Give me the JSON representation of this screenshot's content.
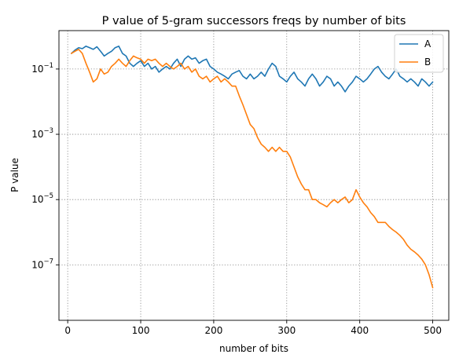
{
  "chart_data": {
    "type": "line",
    "title": "P value of 5-gram successors freqs by number of bits",
    "xlabel": "number of bits",
    "ylabel": "P value",
    "xlim": [
      -12,
      522
    ],
    "ylim": [
      2e-09,
      1.5
    ],
    "yscale": "log",
    "grid": true,
    "legend_position": "top-right",
    "x_ticks": [
      {
        "value": 0,
        "label": "0"
      },
      {
        "value": 100,
        "label": "100"
      },
      {
        "value": 200,
        "label": "200"
      },
      {
        "value": 300,
        "label": "300"
      },
      {
        "value": 400,
        "label": "400"
      },
      {
        "value": 500,
        "label": "500"
      }
    ],
    "y_ticks": [
      {
        "value": 1e-07,
        "base": "10",
        "exp": "−7"
      },
      {
        "value": 1e-05,
        "base": "10",
        "exp": "−5"
      },
      {
        "value": 0.001,
        "base": "10",
        "exp": "−3"
      },
      {
        "value": 0.1,
        "base": "10",
        "exp": "−1"
      }
    ],
    "series": [
      {
        "name": "A",
        "color": "#1f77b4",
        "x": [
          5,
          10,
          15,
          20,
          25,
          30,
          35,
          40,
          45,
          50,
          55,
          60,
          65,
          70,
          75,
          80,
          85,
          90,
          95,
          100,
          105,
          110,
          115,
          120,
          125,
          130,
          135,
          140,
          145,
          150,
          155,
          160,
          165,
          170,
          175,
          180,
          185,
          190,
          195,
          200,
          205,
          210,
          215,
          220,
          225,
          230,
          235,
          240,
          245,
          250,
          255,
          260,
          265,
          270,
          275,
          280,
          285,
          290,
          295,
          300,
          305,
          310,
          315,
          320,
          325,
          330,
          335,
          340,
          345,
          350,
          355,
          360,
          365,
          370,
          375,
          380,
          385,
          390,
          395,
          400,
          405,
          410,
          415,
          420,
          425,
          430,
          435,
          440,
          445,
          450,
          455,
          460,
          465,
          470,
          475,
          480,
          485,
          490,
          495,
          500
        ],
        "y": [
          0.3,
          0.38,
          0.45,
          0.42,
          0.5,
          0.45,
          0.4,
          0.48,
          0.35,
          0.25,
          0.3,
          0.35,
          0.45,
          0.5,
          0.3,
          0.25,
          0.15,
          0.12,
          0.15,
          0.18,
          0.12,
          0.15,
          0.1,
          0.12,
          0.08,
          0.1,
          0.12,
          0.1,
          0.15,
          0.2,
          0.12,
          0.2,
          0.25,
          0.2,
          0.22,
          0.15,
          0.18,
          0.2,
          0.12,
          0.1,
          0.08,
          0.07,
          0.06,
          0.05,
          0.07,
          0.08,
          0.09,
          0.06,
          0.05,
          0.07,
          0.05,
          0.06,
          0.08,
          0.06,
          0.1,
          0.15,
          0.12,
          0.06,
          0.05,
          0.04,
          0.06,
          0.08,
          0.05,
          0.04,
          0.03,
          0.05,
          0.07,
          0.05,
          0.03,
          0.04,
          0.06,
          0.05,
          0.03,
          0.04,
          0.03,
          0.02,
          0.03,
          0.04,
          0.06,
          0.05,
          0.04,
          0.05,
          0.07,
          0.1,
          0.12,
          0.08,
          0.06,
          0.05,
          0.07,
          0.1,
          0.06,
          0.05,
          0.04,
          0.05,
          0.04,
          0.03,
          0.05,
          0.04,
          0.03,
          0.04
        ]
      },
      {
        "name": "B",
        "color": "#ff7f0e",
        "x": [
          5,
          10,
          15,
          20,
          25,
          30,
          35,
          40,
          45,
          50,
          55,
          60,
          65,
          70,
          75,
          80,
          85,
          90,
          95,
          100,
          105,
          110,
          115,
          120,
          125,
          130,
          135,
          140,
          145,
          150,
          155,
          160,
          165,
          170,
          175,
          180,
          185,
          190,
          195,
          200,
          205,
          210,
          215,
          220,
          225,
          230,
          235,
          240,
          245,
          250,
          255,
          260,
          265,
          270,
          275,
          280,
          285,
          290,
          295,
          300,
          305,
          310,
          315,
          320,
          325,
          330,
          335,
          340,
          345,
          350,
          355,
          360,
          365,
          370,
          375,
          380,
          385,
          390,
          395,
          400,
          405,
          410,
          415,
          420,
          425,
          430,
          435,
          440,
          445,
          450,
          455,
          460,
          465,
          470,
          475,
          480,
          485,
          490,
          495,
          500
        ],
        "y": [
          0.3,
          0.35,
          0.4,
          0.3,
          0.15,
          0.08,
          0.04,
          0.05,
          0.1,
          0.07,
          0.08,
          0.12,
          0.15,
          0.2,
          0.15,
          0.12,
          0.18,
          0.25,
          0.22,
          0.2,
          0.15,
          0.2,
          0.18,
          0.2,
          0.15,
          0.12,
          0.15,
          0.12,
          0.1,
          0.12,
          0.15,
          0.1,
          0.12,
          0.08,
          0.1,
          0.06,
          0.05,
          0.06,
          0.04,
          0.05,
          0.06,
          0.04,
          0.05,
          0.04,
          0.03,
          0.03,
          0.015,
          0.008,
          0.004,
          0.002,
          0.0015,
          0.0008,
          0.0005,
          0.0004,
          0.0003,
          0.0004,
          0.0003,
          0.0004,
          0.0003,
          0.0003,
          0.0002,
          0.0001,
          5e-05,
          3e-05,
          2e-05,
          2e-05,
          1e-05,
          1e-05,
          8e-06,
          7e-06,
          6e-06,
          8e-06,
          1e-05,
          8e-06,
          1e-05,
          1.2e-05,
          8e-06,
          1e-05,
          2e-05,
          1.2e-05,
          8e-06,
          6e-06,
          4e-06,
          3e-06,
          2e-06,
          2e-06,
          2e-06,
          1.5e-06,
          1.2e-06,
          1e-06,
          8e-07,
          6e-07,
          4e-07,
          3e-07,
          2.5e-07,
          2e-07,
          1.5e-07,
          1e-07,
          5e-08,
          2e-08
        ]
      }
    ]
  }
}
